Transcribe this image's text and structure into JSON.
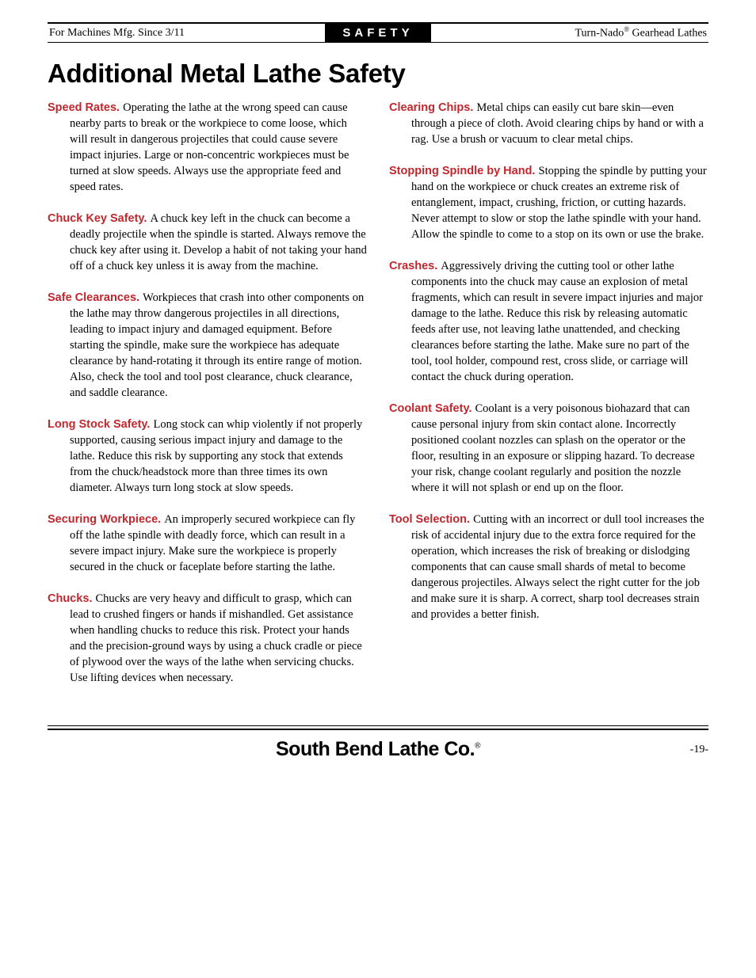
{
  "header": {
    "left": "For Machines Mfg. Since 3/11",
    "center": "SAFETY",
    "right_prefix": "Turn-Nado",
    "right_reg": "®",
    "right_suffix": " Gearhead Lathes"
  },
  "title": "Additional Metal Lathe Safety",
  "colors": {
    "heading": "#c1272d",
    "text": "#000000",
    "background": "#ffffff"
  },
  "left_items": [
    {
      "heading": "Speed Rates.",
      "body": "Operating the lathe at the wrong speed can cause nearby parts to break or the workpiece to come loose, which will result in dangerous projectiles that could cause severe impact injuries. Large or non-concentric workpieces must be turned at slow speeds. Always use the appropriate feed and speed rates."
    },
    {
      "heading": "Chuck Key Safety.",
      "body": "A chuck key left in the chuck can become a deadly projectile when the spindle is started. Always remove the chuck key after using it. Develop a habit of not taking your hand off of a chuck key unless it is away from the machine."
    },
    {
      "heading": "Safe Clearances.",
      "body": "Workpieces that crash into other components on the lathe may throw dangerous projectiles in all directions, leading to impact injury and damaged equipment. Before starting the spindle, make sure the workpiece has adequate clearance by hand-rotating it through its entire range of motion. Also, check the tool and tool post clearance, chuck clearance, and saddle clearance."
    },
    {
      "heading": "Long Stock Safety.",
      "body": "Long stock can whip violently if not properly supported, causing serious impact injury and damage to the lathe. Reduce this risk by supporting any stock that extends from the chuck/headstock more than three times its own diameter. Always turn long stock at slow speeds."
    },
    {
      "heading": "Securing Workpiece.",
      "body": "An improperly secured workpiece can fly off the lathe spindle with deadly force, which can result in a severe impact injury. Make sure the workpiece is properly secured in the chuck or faceplate before starting the lathe."
    },
    {
      "heading": "Chucks.",
      "body": "Chucks are very heavy and difficult to grasp, which can lead to crushed fingers or hands if mishandled. Get assistance when handling chucks to reduce this risk. Protect your hands and the precision-ground ways by using a chuck cradle or piece of plywood over the ways of the lathe when servicing chucks. Use lifting devices when necessary."
    }
  ],
  "right_items": [
    {
      "heading": "Clearing Chips.",
      "body": "Metal chips can easily cut bare skin—even through a piece of cloth. Avoid clearing chips by hand or with a rag. Use a brush or vacuum to clear metal chips."
    },
    {
      "heading": "Stopping Spindle by Hand.",
      "body": "Stopping the spindle by putting your hand on the workpiece or chuck creates an extreme risk of entanglement, impact, crushing, friction, or cutting hazards. Never attempt to slow or stop the lathe spindle with your hand. Allow the spindle to come to a stop on its own or use the brake."
    },
    {
      "heading": "Crashes.",
      "body": "Aggressively driving the cutting tool or other lathe components into the chuck may cause an explosion of metal fragments, which can result in severe impact injuries and major damage to the lathe. Reduce this risk by releasing automatic feeds after use, not leaving lathe unattended, and checking clearances before starting the lathe. Make sure no part of the tool, tool holder, compound rest, cross slide, or carriage will contact the chuck during operation."
    },
    {
      "heading": "Coolant Safety.",
      "body": "Coolant is a very poisonous biohazard that can cause personal injury from skin contact alone. Incorrectly positioned coolant nozzles can splash on the operator or the floor, resulting in an exposure or slipping hazard. To decrease your risk, change coolant regularly and position the nozzle where it will not splash or end up on the floor."
    },
    {
      "heading": "Tool Selection.",
      "body": "Cutting with an incorrect or dull tool increases the risk of accidental injury due to the extra force required for the operation, which increases the risk of breaking or dislodging components that can cause small shards of metal to become dangerous projectiles. Always select the right cutter for the job and make sure it is sharp. A correct, sharp tool decreases strain and provides a better finish."
    }
  ],
  "footer": {
    "brand": "South Bend Lathe Co.",
    "reg": "®",
    "page": "-19-"
  }
}
